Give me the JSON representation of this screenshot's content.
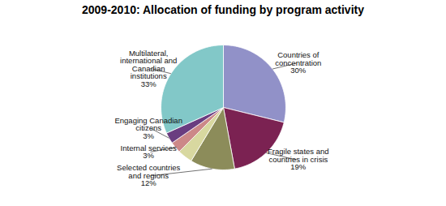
{
  "chart_data": {
    "type": "pie",
    "title": "2009-2010: Allocation of funding by program activity",
    "categories": [
      "Countries of\nconcentration\n30%",
      "Fragile states and\ncountries in crisis\n19%",
      "Selected countries\nand regions\n12%",
      null,
      "Internal services\n3%",
      "Engaging Canadian\ncitizens\n3%",
      "Multilateral,\ninternational and\nCanadian\ninstitutions\n33%"
    ],
    "values": [
      30,
      19,
      12,
      4,
      3,
      3,
      33
    ],
    "colors": [
      "#9191c8",
      "#7b2252",
      "#8c8c5a",
      "#d8d8a0",
      "#cc8888",
      "#6a3d80",
      "#82c8c8"
    ]
  }
}
